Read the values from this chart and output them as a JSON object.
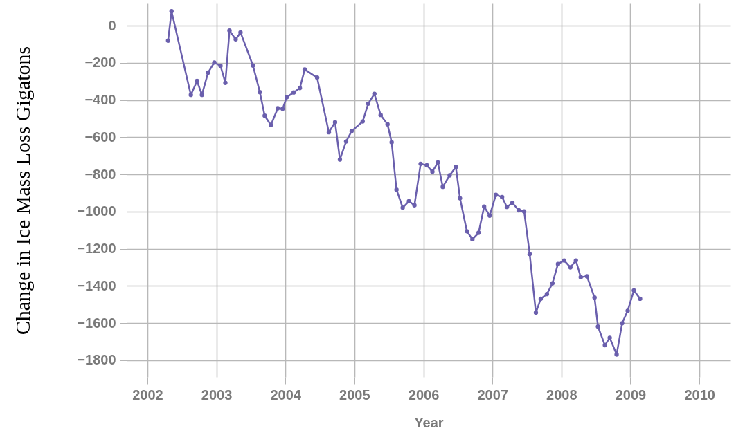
{
  "chart_data": {
    "type": "line",
    "xlabel": "Year",
    "ylabel": "Change in Ice Mass Loss Gigatons",
    "x": [
      2002.3,
      2002.35,
      2002.63,
      2002.72,
      2002.79,
      2002.88,
      2002.97,
      2003.06,
      2003.13,
      2003.19,
      2003.28,
      2003.35,
      2003.53,
      2003.63,
      2003.7,
      2003.79,
      2003.89,
      2003.96,
      2004.02,
      2004.12,
      2004.21,
      2004.28,
      2004.46,
      2004.63,
      2004.72,
      2004.79,
      2004.88,
      2004.96,
      2005.12,
      2005.2,
      2005.29,
      2005.38,
      2005.48,
      2005.54,
      2005.61,
      2005.7,
      2005.79,
      2005.87,
      2005.96,
      2006.05,
      2006.13,
      2006.21,
      2006.28,
      2006.38,
      2006.47,
      2006.53,
      2006.63,
      2006.71,
      2006.8,
      2006.88,
      2006.96,
      2007.05,
      2007.14,
      2007.21,
      2007.29,
      2007.38,
      2007.46,
      2007.54,
      2007.63,
      2007.7,
      2007.79,
      2007.87,
      2007.95,
      2008.04,
      2008.13,
      2008.21,
      2008.28,
      2008.37,
      2008.48,
      2008.53,
      2008.63,
      2008.7,
      2008.8,
      2008.88,
      2008.96,
      2009.05,
      2009.14
    ],
    "series": [
      {
        "color": "#6a5fad",
        "values": [
          -80,
          78,
          -372,
          -297,
          -372,
          -252,
          -198,
          -216,
          -307,
          -26,
          -73,
          -36,
          -214,
          -357,
          -484,
          -534,
          -444,
          -447,
          -384,
          -359,
          -335,
          -235,
          -279,
          -573,
          -519,
          -720,
          -623,
          -567,
          -515,
          -419,
          -366,
          -480,
          -530,
          -627,
          -882,
          -979,
          -944,
          -966,
          -743,
          -751,
          -785,
          -736,
          -867,
          -805,
          -760,
          -928,
          -1106,
          -1149,
          -1114,
          -973,
          -1022,
          -910,
          -922,
          -975,
          -953,
          -993,
          -999,
          -1228,
          -1544,
          -1469,
          -1444,
          -1386,
          -1282,
          -1263,
          -1300,
          -1263,
          -1353,
          -1348,
          -1463,
          -1619,
          -1719,
          -1679,
          -1769,
          -1601,
          -1534,
          -1424,
          -1469
        ]
      }
    ],
    "xlim": [
      2001.7,
      2010.45
    ],
    "ylim": [
      -1890,
      120
    ],
    "xticks": [
      2002,
      2003,
      2004,
      2005,
      2006,
      2007,
      2008,
      2009,
      2010
    ],
    "yticks": [
      0,
      -200,
      -400,
      -600,
      -800,
      -1000,
      -1200,
      -1400,
      -1600,
      -1800
    ],
    "grid": true,
    "marker": "circle",
    "line_style": "solid"
  }
}
